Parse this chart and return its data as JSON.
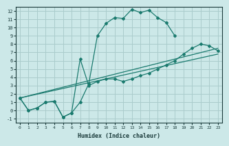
{
  "background_color": "#cce8e8",
  "grid_color": "#aacccc",
  "line_color": "#1a7a6e",
  "marker_color": "#1a7a6e",
  "xlabel": "Humidex (Indice chaleur)",
  "xlim": [
    -0.5,
    23.5
  ],
  "ylim": [
    -1.5,
    12.5
  ],
  "xticks": [
    0,
    1,
    2,
    3,
    4,
    5,
    6,
    7,
    8,
    9,
    10,
    11,
    12,
    13,
    14,
    15,
    16,
    17,
    18,
    19,
    20,
    21,
    22,
    23
  ],
  "yticks": [
    -1,
    0,
    1,
    2,
    3,
    4,
    5,
    6,
    7,
    8,
    9,
    10,
    11,
    12
  ],
  "series": [
    {
      "comment": "main jagged upper curve with markers",
      "x": [
        0,
        1,
        2,
        3,
        4,
        5,
        6,
        7,
        8,
        9,
        10,
        11,
        12,
        13,
        14,
        15,
        16,
        17,
        18
      ],
      "y": [
        1.5,
        0.0,
        0.3,
        1.0,
        1.1,
        -0.8,
        -0.3,
        1.0,
        3.2,
        9.0,
        10.5,
        11.2,
        11.1,
        12.2,
        11.8,
        12.1,
        11.2,
        10.6,
        9.0
      ]
    },
    {
      "comment": "intermediate curved line with markers",
      "x": [
        0,
        1,
        2,
        3,
        4,
        5,
        6,
        7,
        8,
        9,
        10,
        11,
        12,
        13,
        14,
        15,
        16,
        17,
        18,
        19,
        20,
        21,
        22,
        23
      ],
      "y": [
        1.5,
        0.0,
        0.3,
        1.0,
        1.1,
        -0.8,
        -0.3,
        6.2,
        3.0,
        3.5,
        3.8,
        3.8,
        3.2,
        3.5,
        3.8,
        4.0,
        4.2,
        4.5,
        5.0,
        6.5,
        7.2,
        7.6,
        7.5,
        7.0
      ]
    },
    {
      "comment": "straight diagonal line 1 (bottom, no markers)",
      "x": [
        0,
        23
      ],
      "y": [
        1.5,
        7.0
      ]
    },
    {
      "comment": "straight diagonal line 2 (middle, no markers)",
      "x": [
        0,
        23
      ],
      "y": [
        1.5,
        7.5
      ]
    }
  ]
}
